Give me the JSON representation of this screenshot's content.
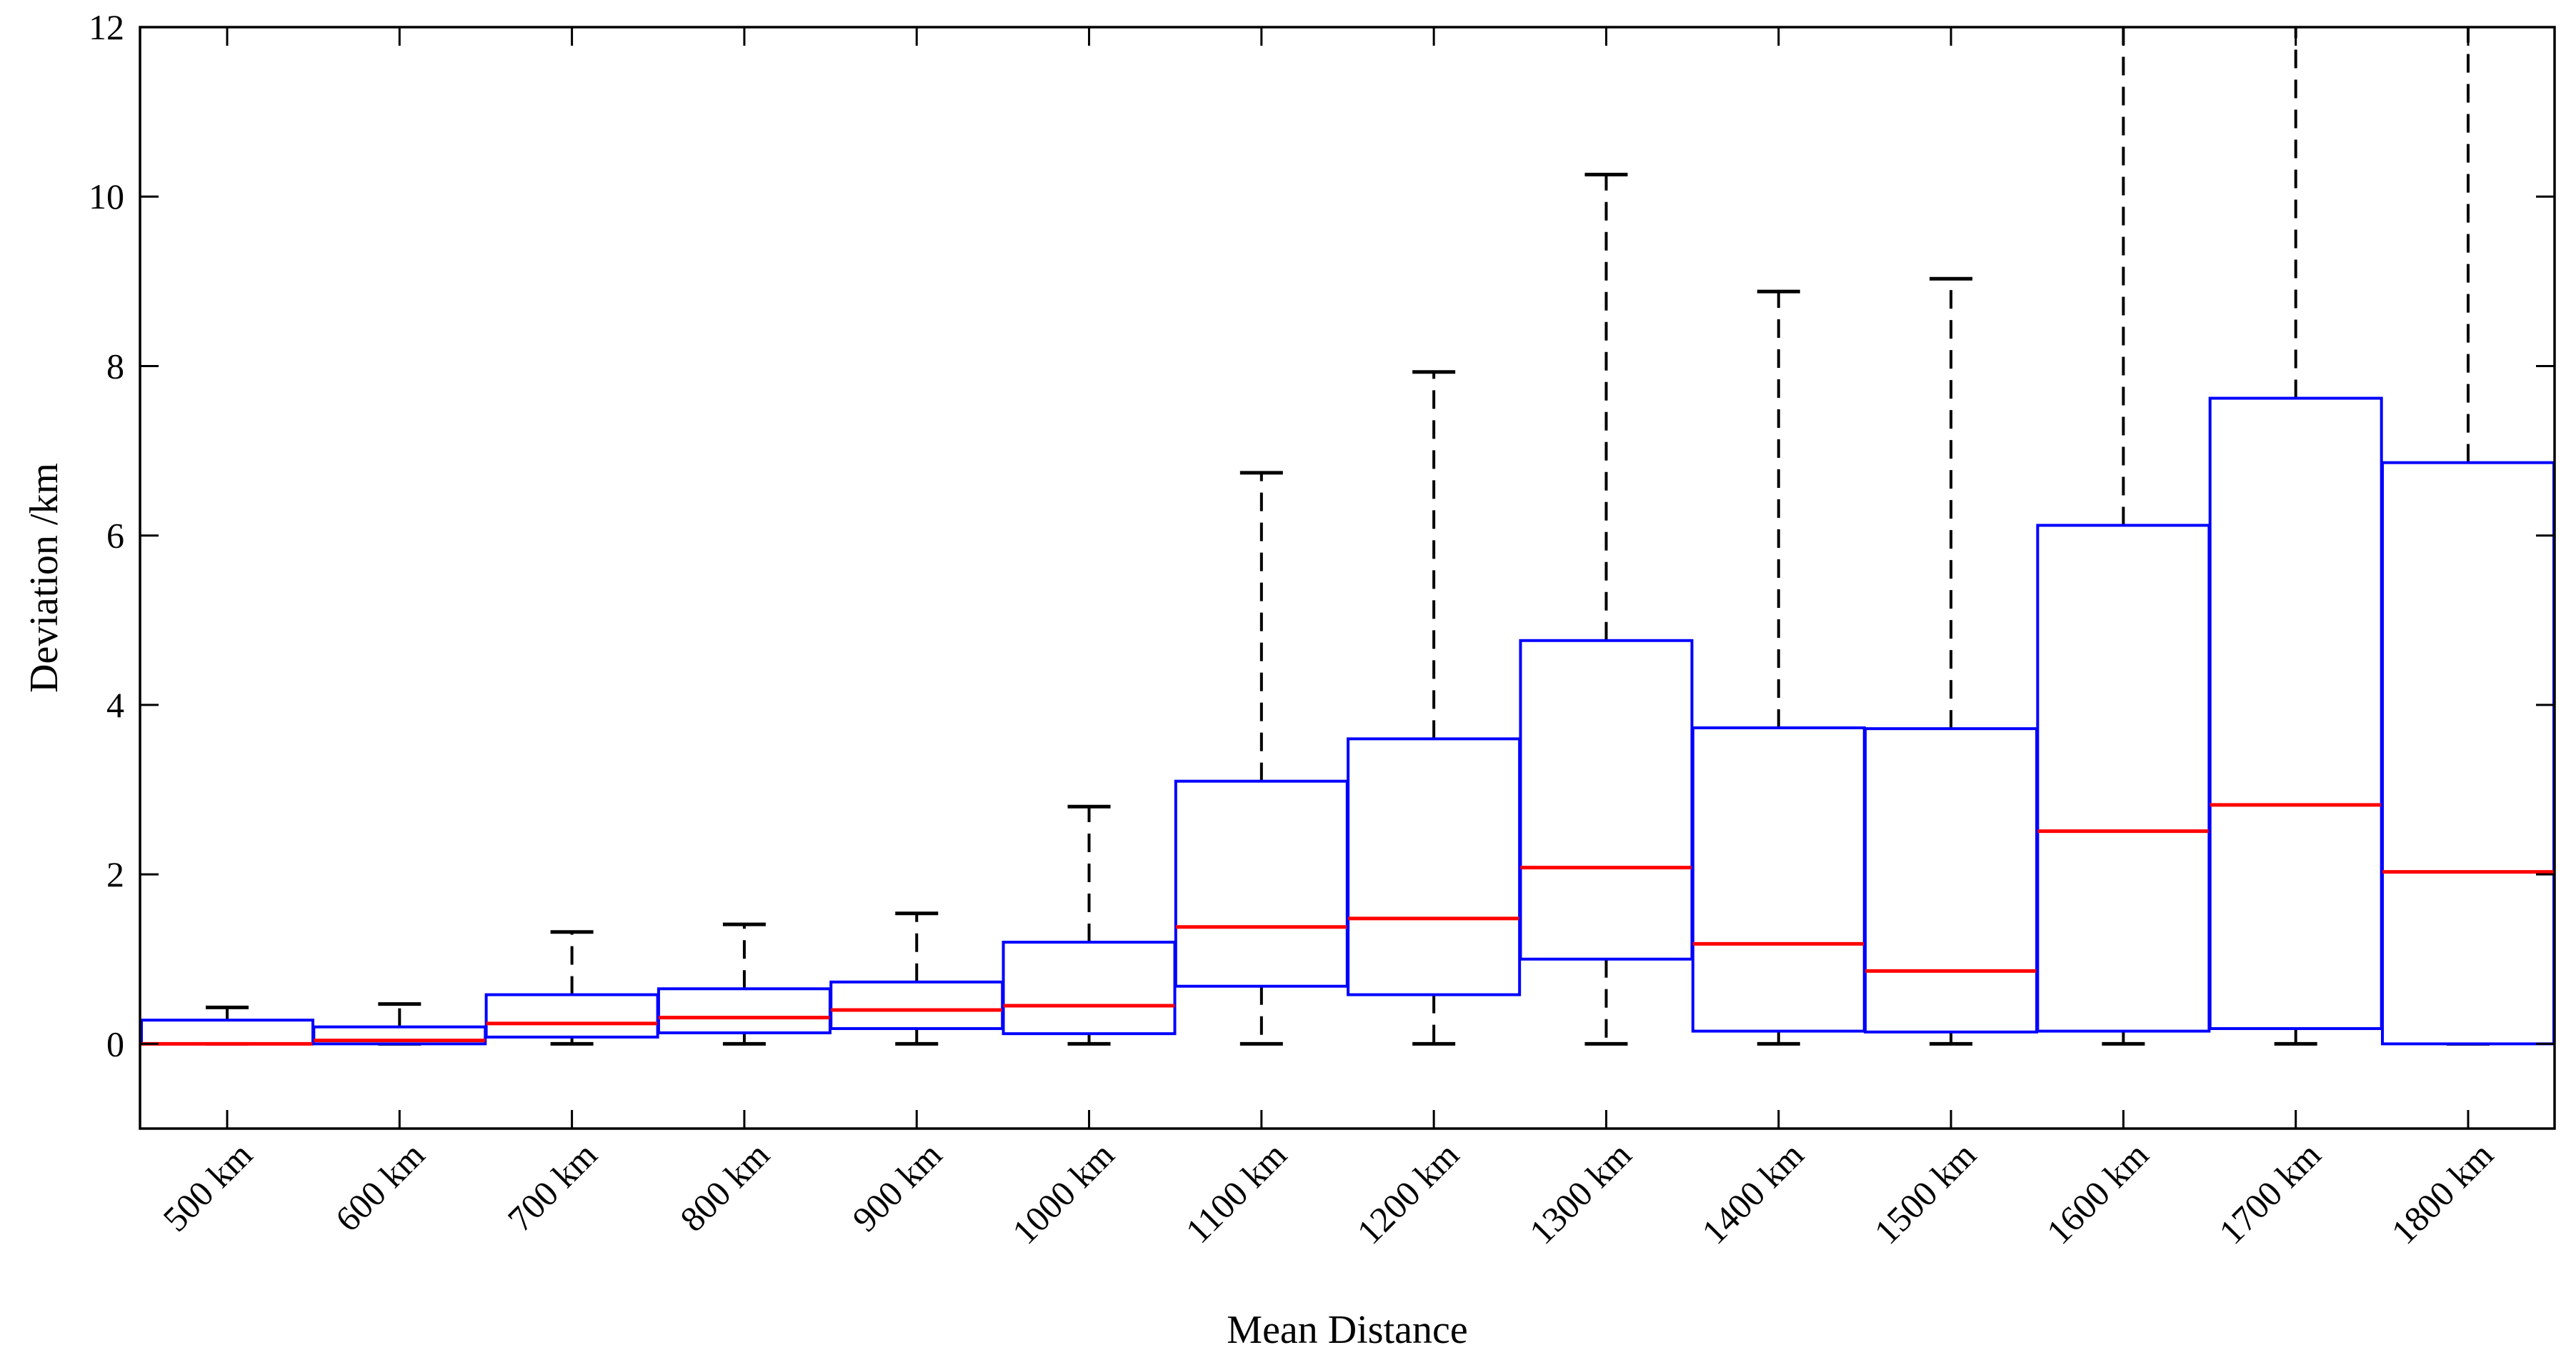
{
  "chart_data": {
    "type": "boxplot",
    "title": "",
    "xlabel": "Mean Distance",
    "ylabel": "Deviation /km",
    "ylim": [
      -1,
      12
    ],
    "yticks": [
      0,
      2,
      4,
      6,
      8,
      10,
      12
    ],
    "grid": false,
    "categories": [
      "500 km",
      "600 km",
      "700 km",
      "800 km",
      "900 km",
      "1000 km",
      "1100 km",
      "1200 km",
      "1300 km",
      "1400 km",
      "1500 km",
      "1600 km",
      "1700 km",
      "1800 km"
    ],
    "boxes": [
      {
        "whisker_low": 0.0,
        "q1": 0.0,
        "median": 0.0,
        "q3": 0.28,
        "whisker_high": 0.43
      },
      {
        "whisker_low": 0.0,
        "q1": 0.0,
        "median": 0.04,
        "q3": 0.2,
        "whisker_high": 0.47
      },
      {
        "whisker_low": 0.0,
        "q1": 0.08,
        "median": 0.24,
        "q3": 0.58,
        "whisker_high": 1.32
      },
      {
        "whisker_low": 0.0,
        "q1": 0.13,
        "median": 0.31,
        "q3": 0.65,
        "whisker_high": 1.41
      },
      {
        "whisker_low": 0.0,
        "q1": 0.18,
        "median": 0.4,
        "q3": 0.73,
        "whisker_high": 1.54
      },
      {
        "whisker_low": 0.0,
        "q1": 0.12,
        "median": 0.45,
        "q3": 1.2,
        "whisker_high": 2.8
      },
      {
        "whisker_low": 0.0,
        "q1": 0.68,
        "median": 1.38,
        "q3": 3.1,
        "whisker_high": 6.74
      },
      {
        "whisker_low": 0.0,
        "q1": 0.58,
        "median": 1.48,
        "q3": 3.6,
        "whisker_high": 7.93
      },
      {
        "whisker_low": 0.0,
        "q1": 1.0,
        "median": 2.08,
        "q3": 4.76,
        "whisker_high": 10.26
      },
      {
        "whisker_low": 0.0,
        "q1": 0.15,
        "median": 1.18,
        "q3": 3.73,
        "whisker_high": 8.88
      },
      {
        "whisker_low": 0.0,
        "q1": 0.14,
        "median": 0.86,
        "q3": 3.72,
        "whisker_high": 9.03
      },
      {
        "whisker_low": 0.0,
        "q1": 0.15,
        "median": 2.51,
        "q3": 6.12,
        "whisker_high": 12.5
      },
      {
        "whisker_low": 0.0,
        "q1": 0.18,
        "median": 2.82,
        "q3": 7.62,
        "whisker_high": 12.5
      },
      {
        "whisker_low": 0.0,
        "q1": 0.0,
        "median": 2.03,
        "q3": 6.86,
        "whisker_high": 12.5
      }
    ],
    "colors": {
      "box": "#0000ff",
      "median": "#ff0000",
      "whisker": "#000000",
      "axis": "#000000"
    }
  }
}
